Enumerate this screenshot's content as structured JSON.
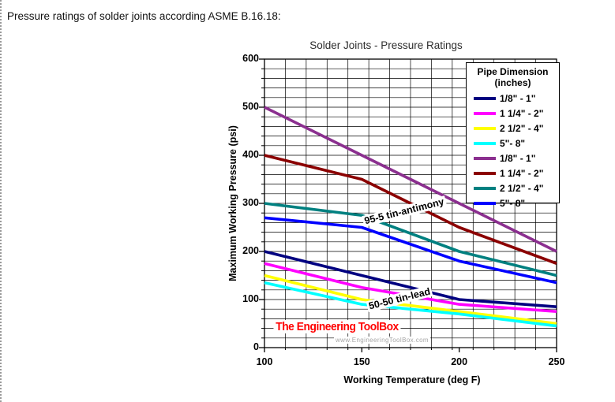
{
  "page": {
    "caption": "Pressure ratings of solder joints according ASME B.16.18:"
  },
  "chart": {
    "title": "Solder Joints - Pressure Ratings",
    "x_axis_label": "Working Temperature (deg F)",
    "y_axis_label": "Maximum Working Pressure (psi)",
    "legend_title_line1": "Pipe Dimension",
    "legend_title_line2": "(inches)",
    "annotation_antimony": "95-5 tin-antimony",
    "annotation_lead": "50-50 tin-lead",
    "watermark_title": "The Engineering ToolBox",
    "watermark_url": "www.EngineeringToolBox.com",
    "watermark_color": "#FF0000"
  },
  "chart_data": {
    "type": "line",
    "title": "Solder Joints - Pressure Ratings",
    "xlabel": "Working Temperature (deg F)",
    "ylabel": "Maximum Working Pressure (psi)",
    "x": [
      100,
      150,
      200,
      250
    ],
    "xlim": [
      100,
      250
    ],
    "ylim": [
      0,
      600
    ],
    "x_ticks": [
      100,
      150,
      200,
      250
    ],
    "y_ticks": [
      0,
      100,
      200,
      300,
      400,
      500,
      600
    ],
    "grid": {
      "on": true,
      "x_minor_intervals": 14,
      "y_minor_step": 20,
      "color": "#000000"
    },
    "legend_title": "Pipe Dimension (inches)",
    "legend_position": "top-right",
    "series": [
      {
        "group": "50-50 tin-lead",
        "label": "1/8\" - 1\"",
        "color": "#000080",
        "values": [
          200,
          150,
          100,
          85
        ]
      },
      {
        "group": "50-50 tin-lead",
        "label": "1 1/4\" - 2\"",
        "color": "#FF00FF",
        "values": [
          175,
          125,
          90,
          75
        ]
      },
      {
        "group": "50-50 tin-lead",
        "label": "2 1/2\" - 4\"",
        "color": "#FFFF00",
        "values": [
          150,
          100,
          75,
          50
        ]
      },
      {
        "group": "50-50 tin-lead",
        "label": "5\"- 8\"",
        "color": "#00FFFF",
        "values": [
          135,
          90,
          70,
          45
        ]
      },
      {
        "group": "95-5 tin-antimony",
        "label": "1/8\" - 1\"",
        "color": "#8B2F8F",
        "values": [
          500,
          400,
          300,
          200
        ]
      },
      {
        "group": "95-5 tin-antimony",
        "label": "1 1/4\" - 2\"",
        "color": "#8B0000",
        "values": [
          400,
          350,
          250,
          175
        ]
      },
      {
        "group": "95-5 tin-antimony",
        "label": "2 1/2\" - 4\"",
        "color": "#008080",
        "values": [
          300,
          275,
          200,
          150
        ]
      },
      {
        "group": "95-5 tin-antimony",
        "label": "5\"- 8\"",
        "color": "#0000FF",
        "values": [
          270,
          250,
          180,
          135
        ]
      }
    ],
    "annotations": [
      {
        "text": "95-5 tin-antimony",
        "near_x": 172,
        "near_y": 290,
        "rotation_deg": -14
      },
      {
        "text": "50-50 tin-lead",
        "near_x": 170,
        "near_y": 102,
        "rotation_deg": -14
      }
    ]
  }
}
